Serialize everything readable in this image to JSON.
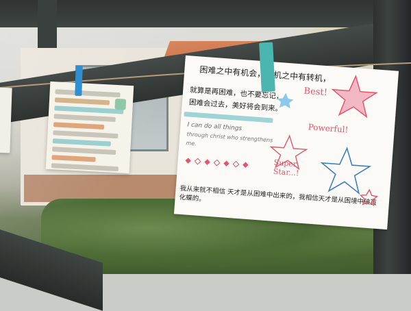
{
  "note_card": {
    "line1": "困难之中有机会，危机之中有转机，",
    "line2": "就算是再困难，也不要忘记，",
    "line3": "困难会过去，美好将会到来。",
    "english_line1": "I can do all things",
    "english_line2": "through christ who strengthens",
    "english_line3": "me.",
    "best": "Best!",
    "powerful": "Powerful!",
    "super_star": "Super\nStar...!",
    "bottom_line": "我从来就不相信 天才是从困难中出来的，我相信天才是从困境中破茧化蝶的。"
  },
  "colors": {
    "clothespin_teal": "#4bb6b0",
    "clothespin_blue": "#2f8fd0",
    "ink_pink": "#e2556a",
    "highlight_teal": "#9fd3d6"
  }
}
